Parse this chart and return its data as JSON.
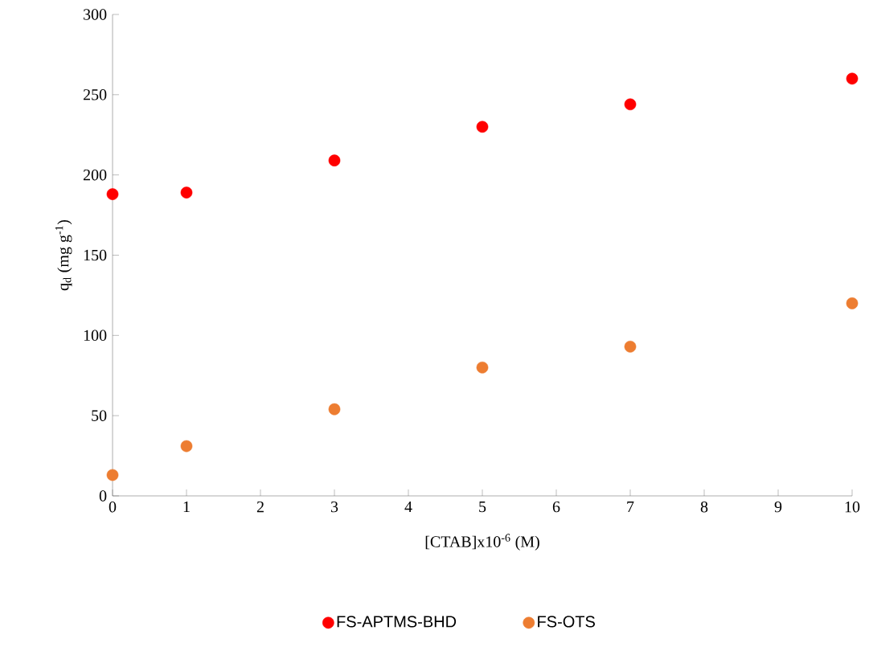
{
  "chart_data": {
    "type": "scatter",
    "xlabel": "[CTAB]x10$^{-6}$ (M)",
    "ylabel": "q$_{d}$ (mg g$^{-1}$)",
    "x": [
      0,
      1,
      3,
      5,
      7,
      10
    ],
    "series": [
      {
        "name": "FS-APTMS-BHD",
        "color": "#ff0000",
        "values": [
          188,
          189,
          209,
          230,
          244,
          260
        ]
      },
      {
        "name": "FS-OTS",
        "color": "#ed7d31",
        "values": [
          13,
          31,
          54,
          80,
          93,
          120
        ]
      }
    ],
    "xlim": [
      0,
      10
    ],
    "xticks": [
      0,
      1,
      2,
      3,
      4,
      5,
      6,
      7,
      8,
      9,
      10
    ],
    "ylim": [
      0,
      300
    ],
    "yticks": [
      0,
      50,
      100,
      150,
      200,
      250,
      300
    ],
    "grid": false,
    "legend": "bottom",
    "marker": "circle"
  }
}
